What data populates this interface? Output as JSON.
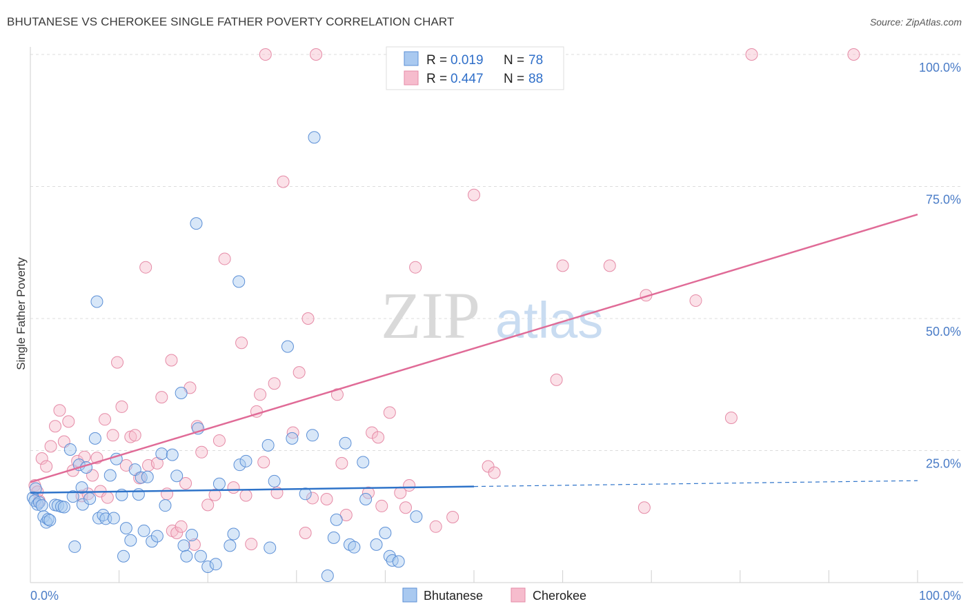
{
  "title": "BHUTANESE VS CHEROKEE SINGLE FATHER POVERTY CORRELATION CHART",
  "source": "Source: ZipAtlas.com",
  "watermark": {
    "zip": "ZIP",
    "atlas": "atlas"
  },
  "legend": {
    "items": [
      {
        "r_label": "R =",
        "r_value": "0.019",
        "n_label": "N =",
        "n_value": "78"
      },
      {
        "r_label": "R =",
        "r_value": "0.447",
        "n_label": "N =",
        "n_value": "88"
      }
    ]
  },
  "bottom_legend": [
    "Bhutanese",
    "Cherokee"
  ],
  "chart_data": {
    "type": "scatter",
    "title": "BHUTANESE VS CHEROKEE SINGLE FATHER POVERTY CORRELATION CHART",
    "xlabel": "",
    "ylabel": "Single Father Poverty",
    "xlim": [
      0,
      100
    ],
    "ylim": [
      0,
      100
    ],
    "x_tick_labels": [
      "0.0%",
      "100.0%"
    ],
    "y_tick_labels": [
      "25.0%",
      "50.0%",
      "75.0%",
      "100.0%"
    ],
    "y_ticks": [
      25,
      50,
      75,
      100
    ],
    "colors": {
      "Bhutanese": {
        "fill": "#a9c9f0",
        "stroke": "#5b8fd6",
        "line": "#2e73c9"
      },
      "Cherokee": {
        "fill": "#f6bccd",
        "stroke": "#e58aa6",
        "line": "#e06b97"
      }
    },
    "series": [
      {
        "name": "Bhutanese",
        "r": 0.019,
        "n": 78,
        "trend": {
          "x0": 0,
          "y0": 17.0,
          "x1": 50,
          "y1": 18.2,
          "dash_to_x": 100,
          "dash_to_y": 19.3
        },
        "points": [
          [
            0.3,
            16.1
          ],
          [
            0.5,
            15.5
          ],
          [
            0.6,
            17.8
          ],
          [
            0.8,
            14.8
          ],
          [
            1.0,
            15.2
          ],
          [
            1.3,
            14.6
          ],
          [
            1.5,
            12.5
          ],
          [
            1.8,
            11.4
          ],
          [
            2.0,
            12.0
          ],
          [
            2.2,
            11.8
          ],
          [
            2.8,
            14.7
          ],
          [
            3.1,
            14.6
          ],
          [
            3.5,
            14.4
          ],
          [
            3.8,
            14.3
          ],
          [
            4.5,
            25.2
          ],
          [
            4.8,
            16.3
          ],
          [
            5.0,
            6.8
          ],
          [
            5.5,
            22.3
          ],
          [
            5.8,
            18.0
          ],
          [
            5.9,
            14.8
          ],
          [
            6.3,
            21.8
          ],
          [
            6.7,
            15.9
          ],
          [
            7.3,
            27.3
          ],
          [
            7.5,
            53.2
          ],
          [
            7.7,
            12.2
          ],
          [
            8.2,
            12.8
          ],
          [
            8.5,
            12.1
          ],
          [
            9.0,
            20.3
          ],
          [
            9.4,
            12.2
          ],
          [
            9.7,
            23.4
          ],
          [
            10.3,
            16.6
          ],
          [
            10.5,
            5.0
          ],
          [
            10.8,
            10.3
          ],
          [
            11.3,
            8.0
          ],
          [
            11.8,
            21.4
          ],
          [
            12.2,
            16.7
          ],
          [
            12.5,
            19.9
          ],
          [
            12.8,
            9.8
          ],
          [
            13.2,
            20.0
          ],
          [
            13.7,
            7.8
          ],
          [
            14.3,
            8.8
          ],
          [
            14.8,
            24.4
          ],
          [
            15.2,
            14.6
          ],
          [
            16.0,
            24.2
          ],
          [
            16.5,
            20.2
          ],
          [
            17.0,
            35.9
          ],
          [
            17.3,
            7.0
          ],
          [
            17.6,
            5.0
          ],
          [
            18.2,
            9.0
          ],
          [
            18.7,
            68.0
          ],
          [
            18.9,
            29.2
          ],
          [
            19.2,
            5.0
          ],
          [
            20.0,
            3.0
          ],
          [
            20.9,
            3.5
          ],
          [
            21.3,
            18.7
          ],
          [
            22.5,
            7.0
          ],
          [
            22.9,
            9.2
          ],
          [
            23.6,
            22.3
          ],
          [
            23.5,
            57.0
          ],
          [
            24.3,
            23.0
          ],
          [
            27.0,
            6.6
          ],
          [
            26.8,
            26.0
          ],
          [
            27.5,
            19.2
          ],
          [
            29.5,
            27.3
          ],
          [
            29.0,
            44.7
          ],
          [
            32.0,
            84.3
          ],
          [
            31.8,
            27.9
          ],
          [
            31.0,
            16.8
          ],
          [
            33.5,
            1.3
          ],
          [
            34.2,
            8.5
          ],
          [
            34.5,
            11.9
          ],
          [
            35.5,
            26.4
          ],
          [
            36.0,
            7.2
          ],
          [
            36.5,
            6.7
          ],
          [
            37.5,
            22.8
          ],
          [
            37.8,
            15.8
          ],
          [
            39.0,
            7.2
          ],
          [
            40.0,
            9.4
          ],
          [
            40.5,
            5.0
          ],
          [
            40.8,
            4.2
          ],
          [
            41.5,
            4.0
          ],
          [
            43.5,
            12.5
          ]
        ]
      },
      {
        "name": "Cherokee",
        "r": 0.447,
        "n": 88,
        "trend": {
          "x0": 0,
          "y0": 19.0,
          "x1": 100,
          "y1": 69.7
        },
        "points": [
          [
            0.5,
            18.4
          ],
          [
            0.8,
            17.2
          ],
          [
            1.0,
            15.5
          ],
          [
            1.3,
            23.5
          ],
          [
            1.8,
            22.0
          ],
          [
            2.3,
            25.8
          ],
          [
            2.8,
            29.6
          ],
          [
            3.3,
            32.6
          ],
          [
            3.8,
            26.7
          ],
          [
            4.3,
            30.5
          ],
          [
            4.8,
            21.2
          ],
          [
            5.3,
            23.0
          ],
          [
            5.8,
            16.4
          ],
          [
            6.1,
            23.8
          ],
          [
            6.5,
            16.8
          ],
          [
            7.0,
            20.3
          ],
          [
            7.5,
            23.6
          ],
          [
            7.9,
            17.3
          ],
          [
            8.4,
            30.9
          ],
          [
            8.7,
            16.1
          ],
          [
            9.3,
            27.9
          ],
          [
            9.8,
            41.7
          ],
          [
            10.3,
            33.3
          ],
          [
            10.8,
            22.2
          ],
          [
            11.3,
            27.6
          ],
          [
            11.8,
            27.9
          ],
          [
            12.3,
            19.8
          ],
          [
            13.0,
            59.7
          ],
          [
            13.3,
            22.2
          ],
          [
            14.3,
            22.6
          ],
          [
            14.8,
            35.1
          ],
          [
            15.4,
            16.8
          ],
          [
            15.9,
            42.1
          ],
          [
            16.0,
            9.8
          ],
          [
            16.5,
            9.4
          ],
          [
            17.0,
            10.6
          ],
          [
            17.5,
            18.8
          ],
          [
            18.0,
            36.9
          ],
          [
            18.5,
            7.2
          ],
          [
            18.8,
            29.6
          ],
          [
            19.3,
            24.7
          ],
          [
            20.0,
            14.7
          ],
          [
            20.8,
            16.6
          ],
          [
            21.3,
            26.9
          ],
          [
            21.9,
            61.3
          ],
          [
            22.9,
            18.0
          ],
          [
            23.8,
            45.4
          ],
          [
            24.3,
            16.5
          ],
          [
            24.9,
            7.3
          ],
          [
            25.5,
            32.4
          ],
          [
            25.9,
            35.6
          ],
          [
            26.3,
            22.8
          ],
          [
            27.5,
            37.7
          ],
          [
            27.8,
            17.0
          ],
          [
            28.5,
            75.9
          ],
          [
            29.6,
            28.4
          ],
          [
            30.3,
            39.8
          ],
          [
            31.0,
            9.4
          ],
          [
            31.3,
            50.0
          ],
          [
            31.8,
            16.0
          ],
          [
            26.5,
            100.0
          ],
          [
            32.2,
            100.0
          ],
          [
            33.4,
            15.8
          ],
          [
            34.6,
            35.6
          ],
          [
            35.1,
            22.6
          ],
          [
            35.6,
            12.8
          ],
          [
            38.1,
            17.0
          ],
          [
            38.5,
            28.4
          ],
          [
            39.2,
            27.5
          ],
          [
            39.6,
            14.5
          ],
          [
            40.5,
            32.2
          ],
          [
            41.7,
            17.0
          ],
          [
            42.3,
            14.2
          ],
          [
            42.7,
            18.4
          ],
          [
            43.4,
            59.7
          ],
          [
            45.7,
            10.6
          ],
          [
            47.6,
            12.4
          ],
          [
            50.0,
            73.4
          ],
          [
            51.6,
            22.0
          ],
          [
            52.3,
            20.8
          ],
          [
            59.3,
            38.4
          ],
          [
            60.0,
            60.0
          ],
          [
            65.3,
            60.0
          ],
          [
            69.4,
            54.4
          ],
          [
            69.2,
            14.2
          ],
          [
            75.0,
            53.4
          ],
          [
            79.0,
            31.2
          ],
          [
            81.3,
            100.0
          ],
          [
            92.8,
            100.0
          ]
        ]
      }
    ]
  }
}
